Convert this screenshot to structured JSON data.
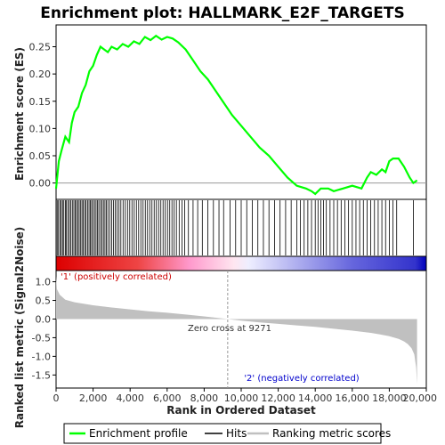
{
  "chart_data": {
    "type": "line",
    "title": "Enrichment plot: HALLMARK_E2F_TARGETS",
    "es_panel": {
      "ylabel": "Enrichment score (ES)",
      "xlim": [
        0,
        20000
      ],
      "ylim": [
        -0.03,
        0.29
      ],
      "yticks": [
        "0.25",
        "0.20",
        "0.15",
        "0.10",
        "0.05",
        "0.00"
      ],
      "ytick_values": [
        0.25,
        0.2,
        0.15,
        0.1,
        0.05,
        0.0
      ],
      "series": [
        {
          "name": "Enrichment profile",
          "color": "#00ff00",
          "x": [
            0,
            150,
            300,
            500,
            700,
            850,
            1000,
            1200,
            1400,
            1600,
            1800,
            2000,
            2200,
            2400,
            2600,
            2800,
            3000,
            3300,
            3600,
            3900,
            4200,
            4500,
            4800,
            5100,
            5400,
            5700,
            6000,
            6300,
            6600,
            7000,
            7400,
            7800,
            8200,
            8600,
            9000,
            9500,
            10000,
            10500,
            11000,
            11500,
            12000,
            12500,
            13000,
            13500,
            13800,
            14000,
            14300,
            14700,
            15000,
            15500,
            16000,
            16500,
            16800,
            17000,
            17300,
            17600,
            17800,
            18000,
            18200,
            18500,
            18800,
            19100,
            19300,
            19500
          ],
          "values": [
            -0.01,
            0.04,
            0.06,
            0.085,
            0.075,
            0.11,
            0.13,
            0.14,
            0.165,
            0.18,
            0.205,
            0.215,
            0.235,
            0.25,
            0.245,
            0.24,
            0.25,
            0.245,
            0.255,
            0.25,
            0.26,
            0.255,
            0.268,
            0.262,
            0.27,
            0.263,
            0.268,
            0.265,
            0.258,
            0.245,
            0.225,
            0.205,
            0.19,
            0.17,
            0.15,
            0.125,
            0.105,
            0.085,
            0.065,
            0.05,
            0.03,
            0.01,
            -0.005,
            -0.01,
            -0.015,
            -0.02,
            -0.01,
            -0.01,
            -0.015,
            -0.01,
            -0.005,
            -0.01,
            0.01,
            0.02,
            0.015,
            0.025,
            0.02,
            0.04,
            0.045,
            0.045,
            0.03,
            0.01,
            0.0,
            0.005
          ]
        }
      ]
    },
    "hits": {
      "name": "Hits",
      "positions": [
        60,
        130,
        210,
        280,
        350,
        420,
        500,
        560,
        640,
        720,
        800,
        880,
        960,
        1040,
        1100,
        1180,
        1250,
        1330,
        1400,
        1470,
        1550,
        1620,
        1700,
        1780,
        1850,
        1920,
        2000,
        2080,
        2160,
        2240,
        2310,
        2400,
        2480,
        2560,
        2640,
        2720,
        2800,
        2900,
        3000,
        3100,
        3200,
        3300,
        3400,
        3500,
        3620,
        3740,
        3860,
        3980,
        4100,
        4220,
        4340,
        4460,
        4580,
        4700,
        4820,
        4940,
        5060,
        5180,
        5300,
        5420,
        5540,
        5660,
        5780,
        5900,
        6020,
        6140,
        6260,
        6380,
        6500,
        6650,
        6800,
        6950,
        7150,
        7400,
        7650,
        7900,
        8200,
        8500,
        8800,
        9050,
        9400,
        9700,
        10000,
        10300,
        10600,
        10900,
        11200,
        11500,
        11800,
        12100,
        12400,
        12700,
        13000,
        13200,
        13400,
        13600,
        13800,
        14000,
        14150,
        14300,
        14450,
        14600,
        14800,
        15000,
        15200,
        15400,
        15600,
        15800,
        16000,
        16200,
        16400,
        16600,
        16800,
        17000,
        17200,
        17400,
        17600,
        17800,
        18000,
        18200,
        18400,
        19300
      ]
    },
    "ranking_panel": {
      "name": "Ranking metric scores",
      "ylabel": "Ranked list metric (Signal2Noise)",
      "xlabel": "Rank in Ordered Dataset",
      "xlim": [
        0,
        20000
      ],
      "ylim": [
        -1.85,
        1.3
      ],
      "yticks": [
        "1.0",
        "0.5",
        "0.0",
        "-0.5",
        "-1.0",
        "-1.5"
      ],
      "ytick_values": [
        1.0,
        0.5,
        0.0,
        -0.5,
        -1.0,
        -1.5
      ],
      "xticks": [
        "0",
        "2,000",
        "4,000",
        "6,000",
        "8,000",
        "10,000",
        "12,000",
        "14,000",
        "16,000",
        "18,000",
        "20,000"
      ],
      "xtick_values": [
        0,
        2000,
        4000,
        6000,
        8000,
        10000,
        12000,
        14000,
        16000,
        18000,
        20000
      ],
      "x": [
        0,
        50,
        200,
        500,
        1000,
        2000,
        3000,
        4000,
        5000,
        6000,
        7000,
        8000,
        9271,
        10000,
        11000,
        12000,
        13000,
        14000,
        15000,
        16000,
        17000,
        17500,
        18000,
        18500,
        18800,
        19000,
        19200,
        19350,
        19450,
        19500
      ],
      "values": [
        1.15,
        0.8,
        0.65,
        0.52,
        0.45,
        0.37,
        0.31,
        0.26,
        0.21,
        0.17,
        0.12,
        0.07,
        0.0,
        -0.04,
        -0.09,
        -0.13,
        -0.17,
        -0.21,
        -0.26,
        -0.31,
        -0.37,
        -0.41,
        -0.46,
        -0.53,
        -0.6,
        -0.67,
        -0.78,
        -0.95,
        -1.3,
        -1.75
      ],
      "zero_cross": 9271,
      "annotations": {
        "positive": "'1' (positively correlated)",
        "zero": "Zero cross at 9271",
        "negative": "'2' (negatively correlated)"
      }
    },
    "legend": {
      "placement": "bottom",
      "items": [
        {
          "label": "Enrichment profile",
          "color": "#00ff00"
        },
        {
          "label": "Hits",
          "color": "#000000"
        },
        {
          "label": "Ranking metric scores",
          "color": "#c0c0c0"
        }
      ]
    },
    "colors": {
      "positive_annotation": "#cc0000",
      "negative_annotation": "#0000cc",
      "profile": "#00ff00",
      "fill": "#c0c0c0",
      "zero_line": "#999999"
    }
  }
}
